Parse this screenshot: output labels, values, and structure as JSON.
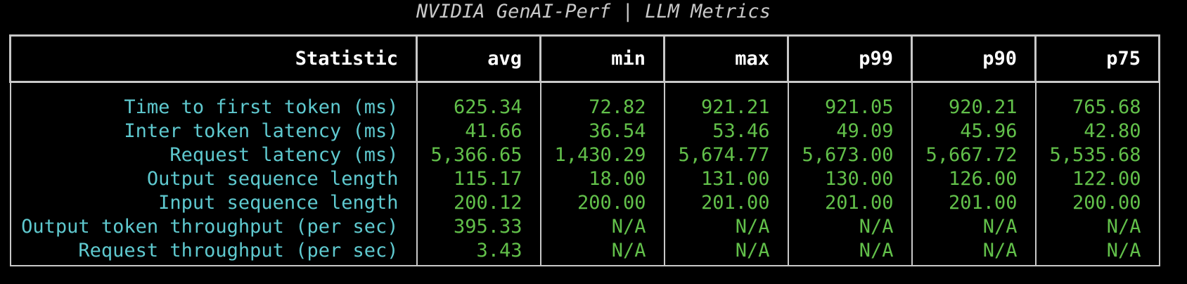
{
  "title": "NVIDIA GenAI-Perf | LLM Metrics",
  "columns": [
    "Statistic",
    "avg",
    "min",
    "max",
    "p99",
    "p90",
    "p75"
  ],
  "rows": [
    {
      "statistic": "Time to first token (ms)",
      "values": [
        "625.34",
        "72.82",
        "921.21",
        "921.05",
        "920.21",
        "765.68"
      ]
    },
    {
      "statistic": "Inter token latency (ms)",
      "values": [
        "41.66",
        "36.54",
        "53.46",
        "49.09",
        "45.96",
        "42.80"
      ]
    },
    {
      "statistic": "Request latency (ms)",
      "values": [
        "5,366.65",
        "1,430.29",
        "5,674.77",
        "5,673.00",
        "5,667.72",
        "5,535.68"
      ]
    },
    {
      "statistic": "Output sequence length",
      "values": [
        "115.17",
        "18.00",
        "131.00",
        "130.00",
        "126.00",
        "122.00"
      ]
    },
    {
      "statistic": "Input sequence length",
      "values": [
        "200.12",
        "200.00",
        "201.00",
        "201.00",
        "201.00",
        "200.00"
      ]
    },
    {
      "statistic": "Output token throughput (per sec)",
      "values": [
        "395.33",
        "N/A",
        "N/A",
        "N/A",
        "N/A",
        "N/A"
      ]
    },
    {
      "statistic": "Request throughput (per sec)",
      "values": [
        "3.43",
        "N/A",
        "N/A",
        "N/A",
        "N/A",
        "N/A"
      ]
    }
  ],
  "colors": {
    "background": "#000000",
    "title": "#c8c8c8",
    "header_text": "#ffffff",
    "border": "#c8c8c8",
    "statistic_text": "#5fc9cf",
    "value_text": "#62c04a"
  }
}
